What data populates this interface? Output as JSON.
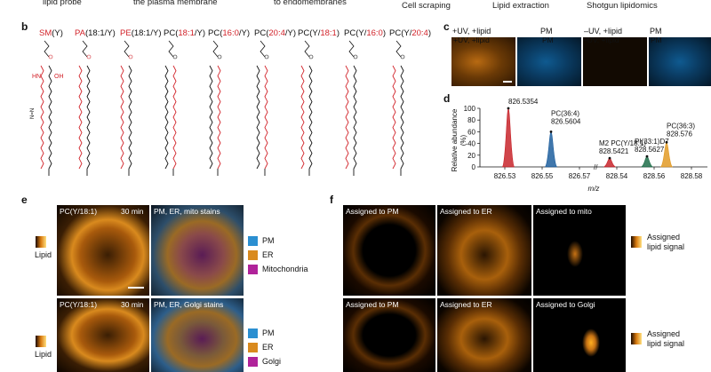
{
  "top_row": {
    "lipid_probe": "lipid probe",
    "plasma_membrane": "the plasma membrane",
    "endomembranes": "to endomembranes",
    "cell_scraping": "Cell scraping",
    "lipid_extraction": "Lipid extraction",
    "shotgun_lipidomics": "Shotgun lipidomics"
  },
  "panel_b": {
    "label": "b",
    "molecules": [
      {
        "prefix": "SM",
        "rest": "(Y)",
        "head": "NMe3+"
      },
      {
        "prefix": "PA",
        "rest": "(18:1/Y)",
        "head": "OH"
      },
      {
        "prefix": "PE",
        "rest": "(18:1/Y)",
        "head": "NH3+"
      },
      {
        "prefix": "PC(",
        "acyl": "18:1",
        "rest": "/Y)",
        "head": "NMe3+"
      },
      {
        "prefix": "PC(",
        "acyl": "16:0",
        "rest": "/Y)",
        "head": "NMe3+"
      },
      {
        "prefix": "PC(",
        "acyl": "20:4",
        "rest": "/Y)",
        "head": "NMe3+"
      },
      {
        "prefix": "PC(Y/",
        "acyl": "18:1",
        "rest": ")",
        "head": "NMe3+"
      },
      {
        "prefix": "PC(Y/",
        "acyl": "16:0",
        "rest": ")",
        "head": "NMe3+"
      },
      {
        "prefix": "PC(Y/",
        "acyl": "20:4",
        "rest": ")",
        "head": "NMe3+"
      }
    ],
    "hn_label": "HN",
    "oh_label": "OH",
    "nn_label": "N=N"
  },
  "panel_c": {
    "label": "c",
    "images": [
      {
        "caption": "+UV, +lipid",
        "color": "#e08a1a"
      },
      {
        "caption": "PM",
        "color": "#1d6fb5"
      },
      {
        "caption": "–UV, +lipid",
        "color": "#3a2006"
      },
      {
        "caption": "PM",
        "color": "#1d6fb5"
      }
    ]
  },
  "panel_d": {
    "label": "d",
    "chart_data": {
      "type": "line",
      "title": "",
      "xlabel": "m/z",
      "ylabel": "Relative abundance (%)",
      "ylim": [
        0,
        100
      ],
      "yticks": [
        "0",
        "20",
        "40",
        "60",
        "80",
        "100"
      ],
      "left_xticks": [
        "826.53",
        "826.55",
        "826.57"
      ],
      "right_xticks": [
        "828.54",
        "828.56",
        "828.58"
      ],
      "peaks": [
        {
          "name": "PC(Y/18:1)",
          "mz": "826.5354",
          "height": 100,
          "color": "#c8252b"
        },
        {
          "name": "PC(36:4)",
          "mz": "826.5604",
          "height": 60,
          "color": "#1f5f9e"
        },
        {
          "name": "M2 PC(Y/18:1)",
          "mz": "828.5421",
          "height": 15,
          "color": "#c8252b"
        },
        {
          "name": "PI(33:1)D7",
          "mz": "828.5627",
          "height": 18,
          "color": "#1f6f4a"
        },
        {
          "name": "PC(36:3)",
          "mz": "828.576",
          "height": 42,
          "color": "#e29a24"
        }
      ]
    }
  },
  "panel_e": {
    "label": "e",
    "lipid_bar_label": "Lipid",
    "row1": {
      "probe": "PC(Y/18:1)",
      "time": "30 min",
      "stains": "PM, ER, mito stains"
    },
    "row2": {
      "probe": "PC(Y/18:1)",
      "time": "30 min",
      "stains": "PM, ER, Golgi stains"
    },
    "legend1": [
      {
        "label": "PM",
        "color": "#2b8fd1"
      },
      {
        "label": "ER",
        "color": "#d98a1e"
      },
      {
        "label": "Mitochondria",
        "color": "#b0239a"
      }
    ],
    "legend2": [
      {
        "label": "PM",
        "color": "#2b8fd1"
      },
      {
        "label": "ER",
        "color": "#d98a1e"
      },
      {
        "label": "Golgi",
        "color": "#b0239a"
      }
    ]
  },
  "panel_f": {
    "label": "f",
    "row1": [
      "Assigned to PM",
      "Assigned to ER",
      "Assigned to mito"
    ],
    "row2": [
      "Assigned to PM",
      "Assigned to ER",
      "Assigned to Golgi"
    ],
    "assigned_signal_line1": "Assigned",
    "assigned_signal_line2": "lipid signal"
  }
}
